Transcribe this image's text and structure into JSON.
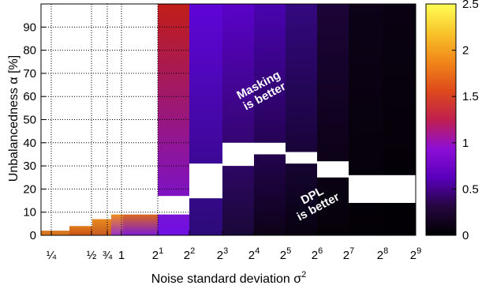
{
  "chart_data": {
    "type": "heatmap",
    "xlabel": "Noise standard deviation σ",
    "xlabel_superscript": "2",
    "ylabel": "Unbalancedness α [%]",
    "x_tick_labels": [
      {
        "base": "¼",
        "exp": ""
      },
      {
        "base": "½",
        "exp": ""
      },
      {
        "base": "¾",
        "exp": ""
      },
      {
        "base": "1",
        "exp": ""
      },
      {
        "base": "2",
        "exp": "1"
      },
      {
        "base": "2",
        "exp": "2"
      },
      {
        "base": "2",
        "exp": "3"
      },
      {
        "base": "2",
        "exp": "4"
      },
      {
        "base": "2",
        "exp": "5"
      },
      {
        "base": "2",
        "exp": "6"
      },
      {
        "base": "2",
        "exp": "7"
      },
      {
        "base": "2",
        "exp": "8"
      },
      {
        "base": "2",
        "exp": "9"
      }
    ],
    "y_ticks": [
      0,
      10,
      20,
      30,
      40,
      50,
      60,
      70,
      80,
      90
    ],
    "ylim": [
      0,
      100
    ],
    "colorbar": {
      "ticks": [
        0,
        0.5,
        1,
        1.5,
        2,
        2.5
      ],
      "range": [
        0,
        2.5
      ],
      "colormap": [
        "#000000",
        "#25063f",
        "#5a00bd",
        "#8e0fd6",
        "#c0204e",
        "#de4a1a",
        "#f1871a",
        "#f8c42a",
        "#ffff55"
      ]
    },
    "annotations": [
      {
        "lines": [
          "Masking",
          "is better"
        ]
      },
      {
        "lines": [
          "DPL",
          "is better"
        ]
      }
    ],
    "columns": [
      {
        "x": "1/4",
        "white_above": 2,
        "colors": [
          "#d8761e",
          "#d8761e"
        ]
      },
      {
        "x": "1/2",
        "white_above": 4,
        "colors": [
          "#e07a1a",
          "#c85318"
        ]
      },
      {
        "x": "3/4",
        "white_above": 7,
        "colors": [
          "#e88a1d",
          "#c75a20"
        ]
      },
      {
        "x": "1",
        "white_above": 9,
        "colors": [
          "#ee8c1c",
          "#9a30c8"
        ]
      },
      {
        "x": "2^1",
        "white_above": 9,
        "colors": [
          "#d8661e",
          "#7d1bd8"
        ]
      },
      {
        "x": "2^2",
        "gap": [
          9,
          17
        ],
        "colors": [
          "#c01e18",
          "#7010e6"
        ]
      },
      {
        "x": "2^3",
        "gap": [
          16,
          31
        ],
        "colors": [
          "#5f05d8",
          "#2c0a78"
        ]
      },
      {
        "x": "2^4",
        "gap": [
          30,
          40
        ],
        "colors": [
          "#5a02c8",
          "#1a0838"
        ]
      },
      {
        "x": "2^5",
        "gap": [
          35,
          40
        ],
        "colors": [
          "#4a03b0",
          "#0d0318"
        ]
      },
      {
        "x": "2^6",
        "gap": [
          31,
          36
        ],
        "colors": [
          "#340880",
          "#080210"
        ]
      },
      {
        "x": "2^7",
        "gap": [
          25,
          32
        ],
        "colors": [
          "#1c0438",
          "#050108"
        ]
      },
      {
        "x": "2^8",
        "gap": [
          14,
          26
        ],
        "colors": [
          "#0d0218",
          "#030005"
        ]
      }
    ]
  }
}
